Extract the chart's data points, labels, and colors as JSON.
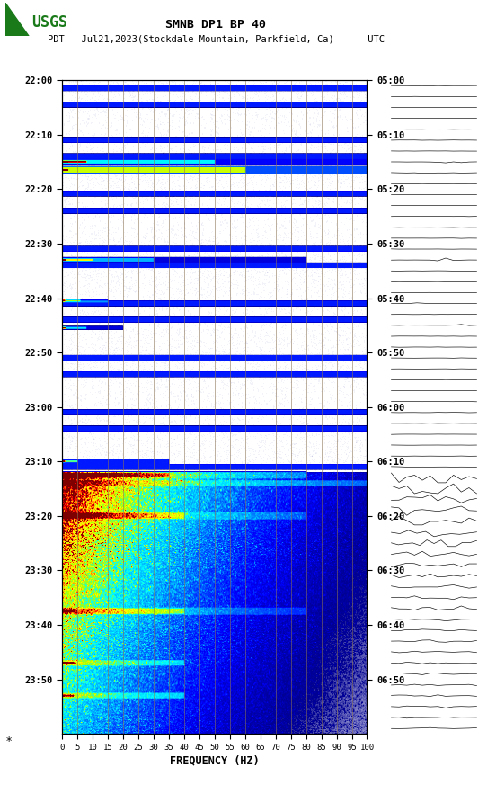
{
  "title_line1": "SMNB DP1 BP 40",
  "title_line2": "PDT   Jul21,2023(Stockdale Mountain, Parkfield, Ca)      UTC",
  "freq_ticks": [
    0,
    5,
    10,
    15,
    20,
    25,
    30,
    35,
    40,
    45,
    50,
    55,
    60,
    65,
    70,
    75,
    80,
    85,
    90,
    95,
    100
  ],
  "time_labels_left": [
    "22:00",
    "22:10",
    "22:20",
    "22:30",
    "22:40",
    "22:50",
    "23:00",
    "23:10",
    "23:20",
    "23:30",
    "23:40",
    "23:50"
  ],
  "time_labels_right": [
    "05:00",
    "05:10",
    "05:20",
    "05:30",
    "05:40",
    "05:50",
    "06:00",
    "06:10",
    "06:20",
    "06:30",
    "06:40",
    "06:50"
  ],
  "xlabel": "FREQUENCY (HZ)",
  "vline_color": "#8B7355",
  "usgs_green": "#1a7a1a",
  "dark_blue": "#00008B",
  "mid_blue": "#0000CD"
}
